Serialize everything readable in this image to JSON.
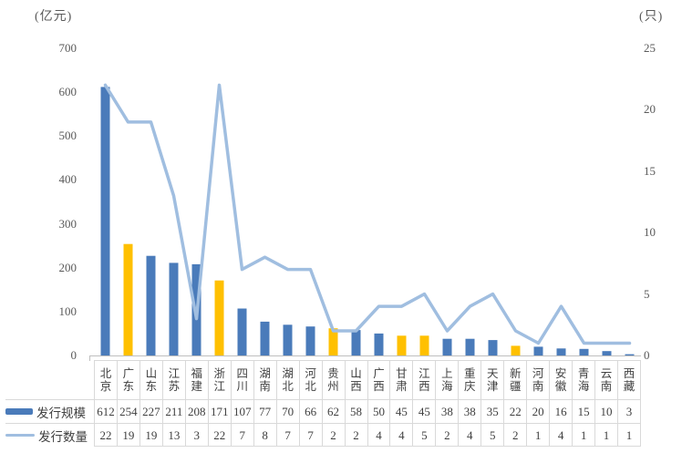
{
  "chart": {
    "left_axis_title": "(亿元)",
    "right_axis_title": "(只)",
    "left_ticks": [
      700,
      600,
      500,
      400,
      300,
      200,
      100,
      0
    ],
    "right_ticks": [
      25,
      20,
      15,
      10,
      5,
      0
    ]
  },
  "chart_data": {
    "type": "bar",
    "subtype": "combo-bar-line-dual-axis",
    "categories": [
      "北京",
      "广东",
      "山东",
      "江苏",
      "福建",
      "浙江",
      "四川",
      "湖南",
      "湖北",
      "河北",
      "贵州",
      "山西",
      "广西",
      "甘肃",
      "江西",
      "上海",
      "重庆",
      "天津",
      "新疆",
      "河南",
      "安徽",
      "青海",
      "云南",
      "西藏"
    ],
    "series": [
      {
        "name": "发行规模",
        "type": "bar",
        "axis": "left",
        "unit": "亿元",
        "values": [
          612,
          254,
          227,
          211,
          208,
          171,
          107,
          77,
          70,
          66,
          62,
          58,
          50,
          45,
          45,
          38,
          38,
          35,
          22,
          20,
          16,
          15,
          10,
          3
        ]
      },
      {
        "name": "发行数量",
        "type": "line",
        "axis": "right",
        "unit": "只",
        "values": [
          22,
          19,
          19,
          13,
          3,
          22,
          7,
          8,
          7,
          7,
          2,
          2,
          4,
          4,
          5,
          2,
          4,
          5,
          2,
          1,
          4,
          1,
          1,
          1
        ]
      }
    ],
    "highlighted_bar_indices": [
      1,
      5,
      10,
      13,
      14,
      18
    ],
    "colors": {
      "bar": "#4A7BBA",
      "bar_highlight": "#FFC000",
      "line": "#A0BEE0",
      "axis_line": "#BFBFBF",
      "table_border": "#D9D9D9",
      "tick_text": "#595959"
    },
    "left_axis_label": "(亿元)",
    "right_axis_label": "(只)",
    "left_axis_range": [
      0,
      700
    ],
    "right_axis_range": [
      0,
      25
    ],
    "grid": false,
    "legend_position": "table-left",
    "title": ""
  },
  "table": {
    "row_labels": [
      "发行规模",
      "发行数量"
    ]
  }
}
